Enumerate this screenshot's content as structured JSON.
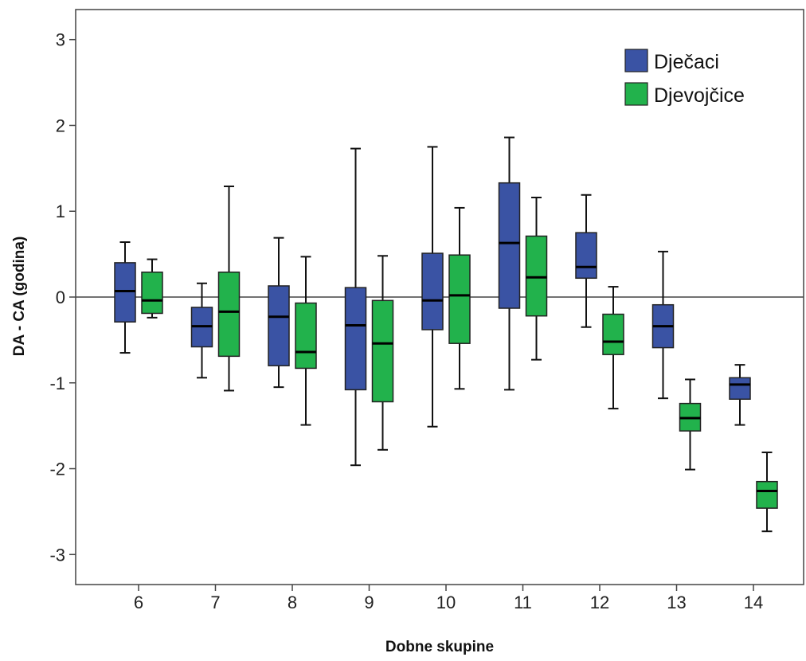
{
  "chart_data": {
    "type": "boxplot",
    "xlabel": "Dobne skupine",
    "ylabel": "DA - CA (godina)",
    "ylim": [
      -3.35,
      3.35
    ],
    "yticks": [
      3,
      2,
      1,
      0,
      -1,
      -2,
      -3
    ],
    "reference_line": 0,
    "legend_position": "top-right",
    "categories": [
      "6",
      "7",
      "8",
      "9",
      "10",
      "11",
      "12",
      "13",
      "14"
    ],
    "series": [
      {
        "name": "Dječaci",
        "color": "#3a53a4",
        "boxes": [
          {
            "min": -0.65,
            "q1": -0.29,
            "median": 0.07,
            "q3": 0.4,
            "max": 0.64
          },
          {
            "min": -0.94,
            "q1": -0.58,
            "median": -0.34,
            "q3": -0.12,
            "max": 0.16
          },
          {
            "min": -1.05,
            "q1": -0.8,
            "median": -0.23,
            "q3": 0.13,
            "max": 0.69
          },
          {
            "min": -1.96,
            "q1": -1.08,
            "median": -0.33,
            "q3": 0.11,
            "max": 1.73
          },
          {
            "min": -1.51,
            "q1": -0.38,
            "median": -0.04,
            "q3": 0.51,
            "max": 1.75
          },
          {
            "min": -1.08,
            "q1": -0.13,
            "median": 0.63,
            "q3": 1.33,
            "max": 1.86
          },
          {
            "min": -0.35,
            "q1": 0.22,
            "median": 0.35,
            "q3": 0.75,
            "max": 1.19
          },
          {
            "min": -1.18,
            "q1": -0.59,
            "median": -0.34,
            "q3": -0.09,
            "max": 0.53
          },
          {
            "min": -1.49,
            "q1": -1.19,
            "median": -1.02,
            "q3": -0.94,
            "max": -0.79
          }
        ]
      },
      {
        "name": "Djevojčice",
        "color": "#22b24c",
        "boxes": [
          {
            "min": -0.24,
            "q1": -0.19,
            "median": -0.04,
            "q3": 0.29,
            "max": 0.44
          },
          {
            "min": -1.09,
            "q1": -0.69,
            "median": -0.17,
            "q3": 0.29,
            "max": 1.29
          },
          {
            "min": -1.49,
            "q1": -0.83,
            "median": -0.64,
            "q3": -0.07,
            "max": 0.47
          },
          {
            "min": -1.78,
            "q1": -1.22,
            "median": -0.54,
            "q3": -0.04,
            "max": 0.48
          },
          {
            "min": -1.07,
            "q1": -0.54,
            "median": 0.02,
            "q3": 0.49,
            "max": 1.04
          },
          {
            "min": -0.73,
            "q1": -0.22,
            "median": 0.23,
            "q3": 0.71,
            "max": 1.16
          },
          {
            "min": -1.3,
            "q1": -0.67,
            "median": -0.52,
            "q3": -0.2,
            "max": 0.12
          },
          {
            "min": -2.01,
            "q1": -1.56,
            "median": -1.41,
            "q3": -1.24,
            "max": -0.96
          },
          {
            "min": -2.73,
            "q1": -2.46,
            "median": -2.26,
            "q3": -2.15,
            "max": -1.81
          }
        ]
      }
    ]
  }
}
